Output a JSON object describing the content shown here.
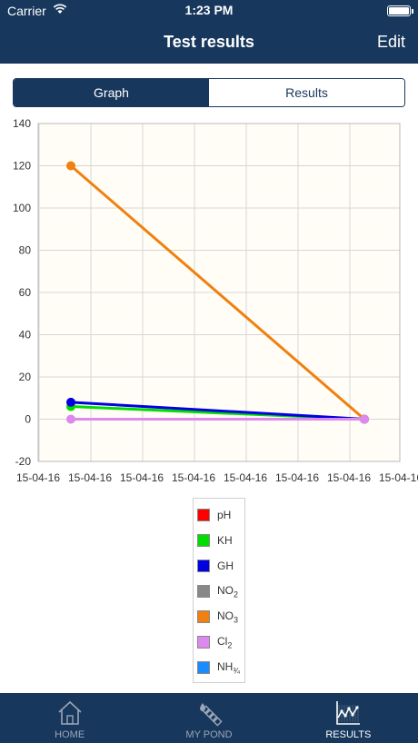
{
  "status_bar": {
    "carrier": "Carrier",
    "time": "1:23 PM"
  },
  "nav": {
    "title": "Test results",
    "edit_label": "Edit"
  },
  "segmented": {
    "tabs": [
      "Graph",
      "Results"
    ],
    "selected": "Graph"
  },
  "chart_data": {
    "type": "line",
    "x": [
      "15-04-16",
      "15-04-16"
    ],
    "x_tick_labels": [
      "15-04-16",
      "15-04-16",
      "15-04-16",
      "15-04-16",
      "15-04-16",
      "15-04-16",
      "15-04-16",
      "15-04-16"
    ],
    "ylim": [
      -20,
      140
    ],
    "y_ticks": [
      -20,
      0,
      20,
      40,
      60,
      80,
      100,
      120,
      140
    ],
    "grid": true,
    "legend_placement": "bottom-center",
    "series": [
      {
        "name": "pH",
        "color": "#ff0000",
        "values": [
          null,
          null
        ]
      },
      {
        "name": "KH",
        "color": "#00dd00",
        "values": [
          6,
          0
        ]
      },
      {
        "name": "GH",
        "color": "#0000e0",
        "values": [
          8,
          0
        ]
      },
      {
        "name": "NO",
        "sub": "2",
        "color": "#888888",
        "values": [
          null,
          null
        ]
      },
      {
        "name": "NO",
        "sub": "3",
        "color": "#f08010",
        "values": [
          120,
          0
        ]
      },
      {
        "name": "Cl",
        "sub": "2",
        "color": "#dd88ee",
        "values": [
          0,
          0
        ]
      },
      {
        "name": "NH",
        "sub": "¾",
        "color": "#1a8cff",
        "values": [
          null,
          null
        ]
      }
    ]
  },
  "tab_bar": {
    "items": [
      {
        "label": "HOME",
        "icon": "home-icon"
      },
      {
        "label": "MY POND",
        "icon": "test-strip-icon"
      },
      {
        "label": "RESULTS",
        "icon": "chart-icon"
      }
    ],
    "active": "RESULTS"
  }
}
